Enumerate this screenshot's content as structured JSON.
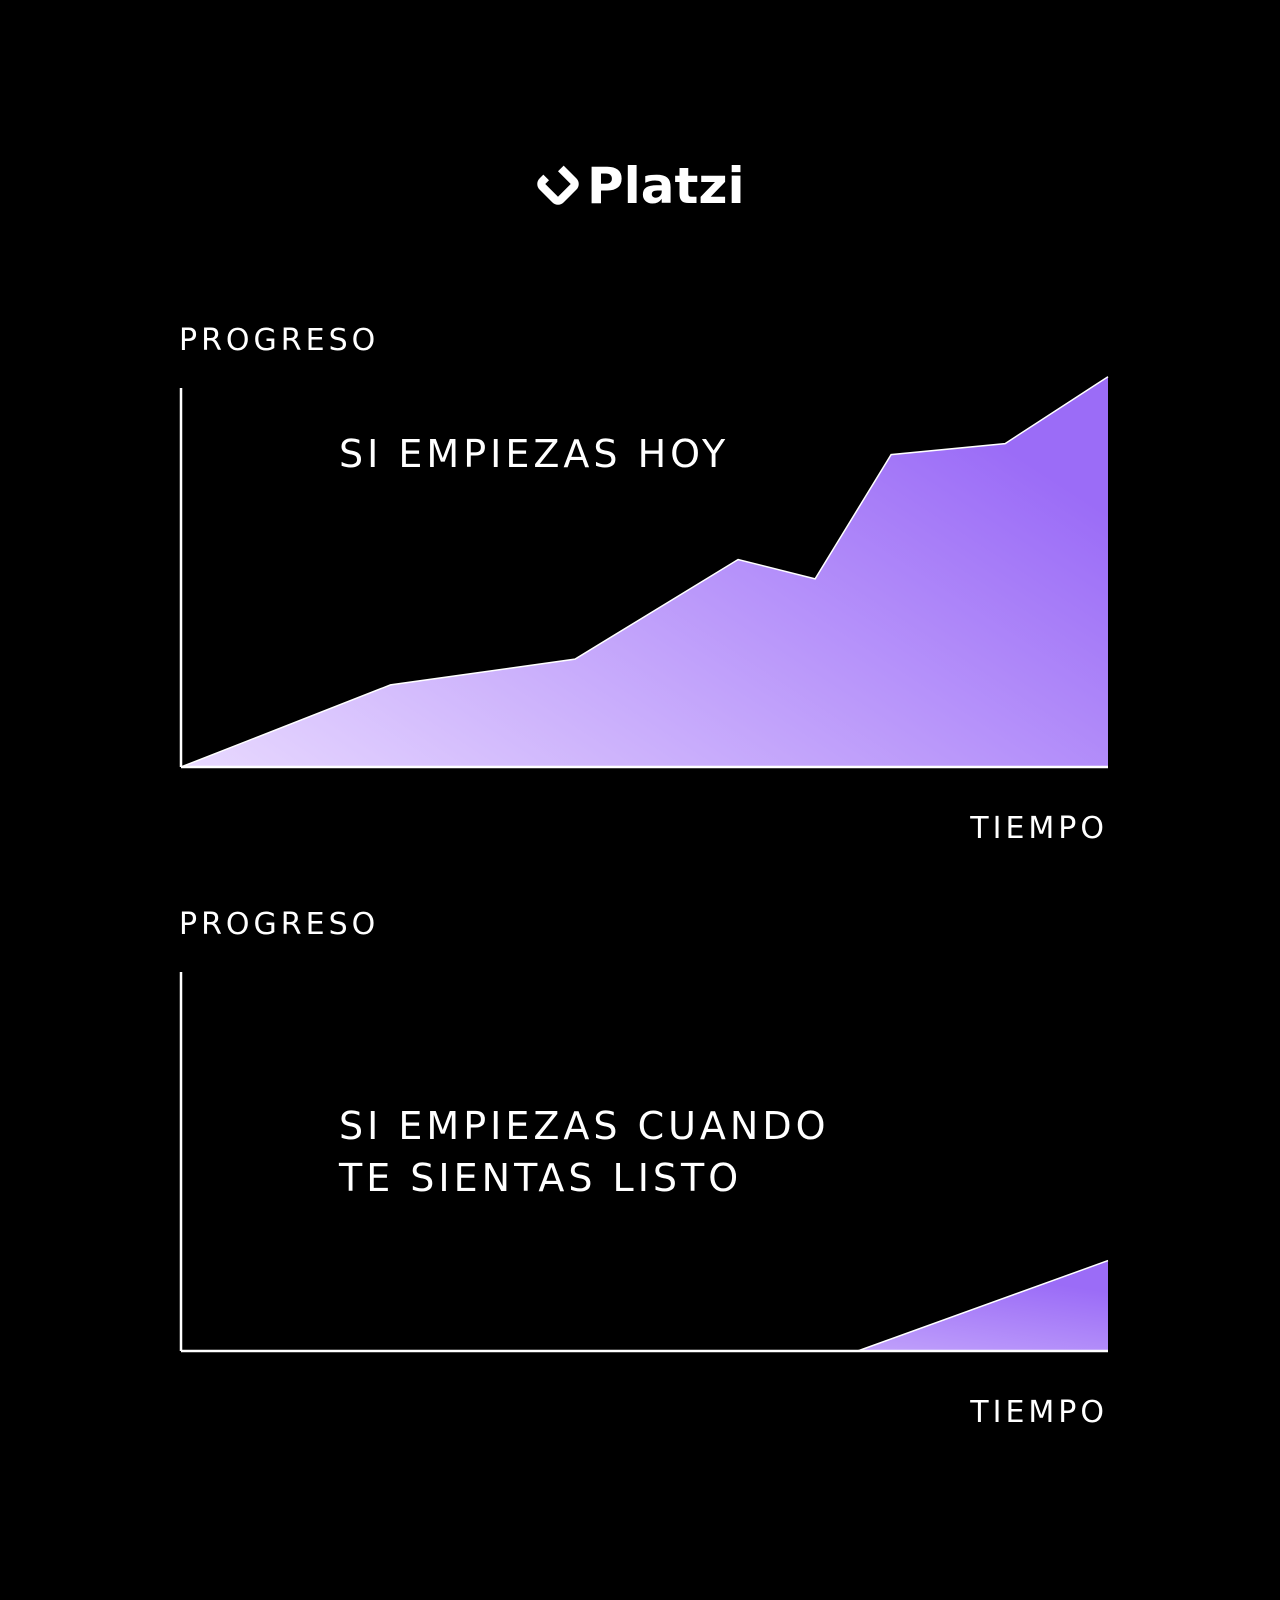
{
  "brand": {
    "name": "Platzi",
    "logo_color": "#ffffff"
  },
  "colors": {
    "background": "#000000",
    "axis": "#ffffff",
    "text": "#ffffff",
    "fill_start": "#e8d9ff",
    "fill_end": "#9b6cf7"
  },
  "chart_data": [
    {
      "type": "area",
      "annotation": "SI EMPIEZAS HOY",
      "ylabel": "PROGRESO",
      "xlabel": "TIEMPO",
      "xlim": [
        0,
        100
      ],
      "ylim": [
        0,
        100
      ],
      "grid": false,
      "x": [
        0,
        22.6,
        42.5,
        60.1,
        68.4,
        76.6,
        88.9,
        100
      ],
      "values": [
        0,
        21.6,
        28.4,
        54.6,
        49.5,
        82.2,
        85.1,
        102.7
      ]
    },
    {
      "type": "area",
      "annotation_lines": [
        "SI EMPIEZAS CUANDO",
        "TE SIENTAS LISTO"
      ],
      "ylabel": "PROGRESO",
      "xlabel": "TIEMPO",
      "xlim": [
        0,
        100
      ],
      "ylim": [
        0,
        100
      ],
      "grid": false,
      "x": [
        0,
        73.0,
        100
      ],
      "values": [
        0,
        0,
        23.8
      ]
    }
  ]
}
